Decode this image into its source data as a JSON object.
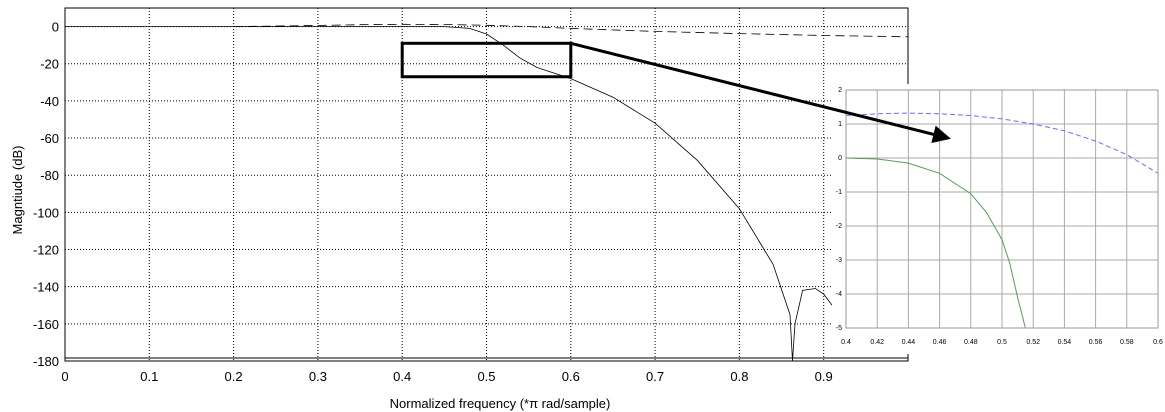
{
  "chart_data": [
    {
      "type": "line",
      "xlabel": "Normalized frequency (*π rad/sample)",
      "ylabel": "Magntiude (dB)",
      "xlim": [
        0,
        1.0
      ],
      "ylim": [
        -180,
        10
      ],
      "x_ticks": [
        "0",
        "0.1",
        "0.2",
        "0.3",
        "0.4",
        "0.5",
        "0.6",
        "0.7",
        "0.8",
        "0.9"
      ],
      "y_ticks": [
        "0",
        "-20",
        "-40",
        "-60",
        "-80",
        "-100",
        "-120",
        "-140",
        "-160",
        "-180"
      ],
      "grid": true,
      "series": [
        {
          "style": "dashed",
          "color": "#000000",
          "points": [
            [
              0.2,
              0
            ],
            [
              0.3,
              0.6
            ],
            [
              0.35,
              1.0
            ],
            [
              0.4,
              1.2
            ],
            [
              0.45,
              1.1
            ],
            [
              0.5,
              0.7
            ],
            [
              0.55,
              0
            ],
            [
              0.6,
              -1
            ],
            [
              0.7,
              -2.6
            ],
            [
              0.8,
              -3.8
            ],
            [
              0.9,
              -4.8
            ],
            [
              1.0,
              -5.5
            ]
          ]
        },
        {
          "style": "solid",
          "color": "#000000",
          "points": [
            [
              0,
              0
            ],
            [
              0.45,
              0
            ],
            [
              0.48,
              -1
            ],
            [
              0.5,
              -4
            ],
            [
              0.52,
              -10
            ],
            [
              0.54,
              -17
            ],
            [
              0.56,
              -22
            ],
            [
              0.6,
              -28
            ],
            [
              0.65,
              -38
            ],
            [
              0.7,
              -52
            ],
            [
              0.75,
              -72
            ],
            [
              0.8,
              -98
            ],
            [
              0.84,
              -128
            ],
            [
              0.86,
              -155
            ],
            [
              0.863,
              -180
            ],
            [
              0.866,
              -160
            ],
            [
              0.875,
              -142
            ],
            [
              0.89,
              -141
            ],
            [
              0.9,
              -144
            ],
            [
              0.91,
              -150
            ]
          ]
        }
      ],
      "annotations": [
        {
          "type": "zoom-box",
          "x": [
            0.4,
            0.6
          ],
          "y": [
            -27,
            -9
          ]
        }
      ]
    },
    {
      "type": "line",
      "role": "inset-zoom",
      "xlim": [
        0.4,
        0.6
      ],
      "ylim": [
        -5,
        2
      ],
      "x_ticks": [
        "0.4",
        "0.42",
        "0.44",
        "0.46",
        "0.48",
        "0.5",
        "0.52",
        "0.54",
        "0.56",
        "0.58",
        "0.6"
      ],
      "y_ticks": [
        "2",
        "1",
        "0",
        "-1",
        "-2",
        "-3",
        "-4",
        "-5"
      ],
      "grid": true,
      "series": [
        {
          "style": "dashed",
          "color": "#6b6bff",
          "points": [
            [
              0.4,
              1.25
            ],
            [
              0.42,
              1.3
            ],
            [
              0.44,
              1.32
            ],
            [
              0.46,
              1.3
            ],
            [
              0.48,
              1.25
            ],
            [
              0.5,
              1.15
            ],
            [
              0.52,
              1.0
            ],
            [
              0.54,
              0.8
            ],
            [
              0.56,
              0.5
            ],
            [
              0.58,
              0.1
            ],
            [
              0.6,
              -0.45
            ]
          ]
        },
        {
          "style": "solid",
          "color": "#5a9a5a",
          "points": [
            [
              0.4,
              0
            ],
            [
              0.42,
              -0.03
            ],
            [
              0.44,
              -0.15
            ],
            [
              0.46,
              -0.45
            ],
            [
              0.48,
              -1.05
            ],
            [
              0.49,
              -1.6
            ],
            [
              0.5,
              -2.4
            ],
            [
              0.505,
              -3.1
            ],
            [
              0.51,
              -4.1
            ],
            [
              0.515,
              -5.0
            ]
          ]
        }
      ]
    }
  ]
}
